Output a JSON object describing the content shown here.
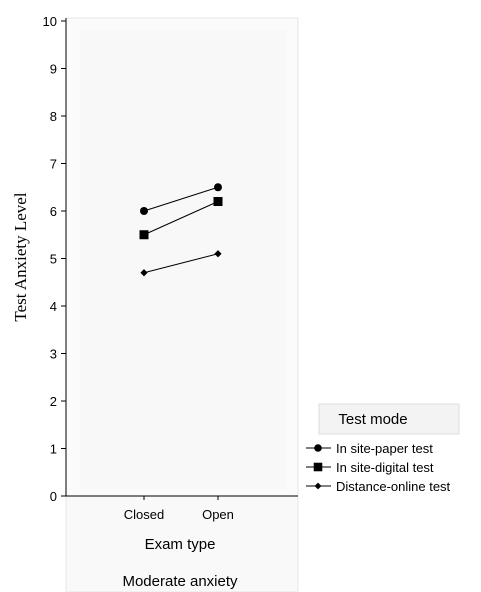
{
  "chart_data": {
    "type": "line",
    "categories": [
      "Closed",
      "Open"
    ],
    "series": [
      {
        "name": "In site-paper test",
        "marker": "circle",
        "values": [
          6.0,
          6.5
        ]
      },
      {
        "name": "In site-digital test",
        "marker": "square",
        "values": [
          5.5,
          6.2
        ]
      },
      {
        "name": "Distance-online test",
        "marker": "diamond",
        "values": [
          4.7,
          5.1
        ]
      }
    ],
    "xlabel": "Exam type",
    "ylabel": "Test Anxiety Level",
    "ylim": [
      0,
      10
    ],
    "yticks": [
      "0",
      "1",
      "2",
      "3",
      "4",
      "5",
      "6",
      "7",
      "8",
      "9",
      "10"
    ],
    "panel_label": "Moderate anxiety",
    "legend": {
      "title": "Test mode",
      "placement": "right"
    },
    "grid": false
  }
}
